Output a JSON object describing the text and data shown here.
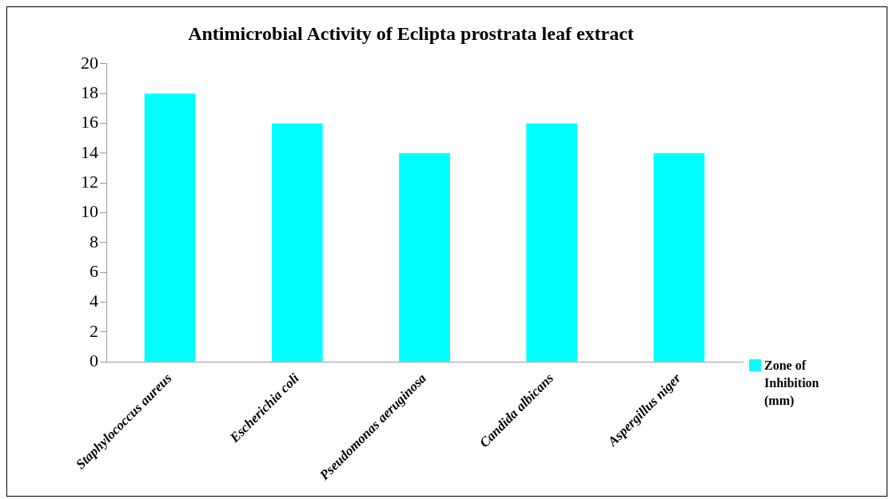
{
  "chart_data": {
    "type": "bar",
    "title": "Antimicrobial Activity of Eclipta prostrata leaf extract",
    "categories": [
      "Staphylococcus aureus",
      "Escherichia coli",
      "Pseudomonas aeruginosa",
      "Candida albicans",
      "Aspergillus niger"
    ],
    "series": [
      {
        "name": "Zone of Inhibition (mm)",
        "color": "#00ffff",
        "values": [
          18,
          16,
          14,
          16,
          14
        ]
      }
    ],
    "ylim": [
      0,
      20
    ],
    "yticks": [
      0,
      2,
      4,
      6,
      8,
      10,
      12,
      14,
      16,
      18,
      20
    ],
    "grid": false,
    "legend": "right"
  }
}
